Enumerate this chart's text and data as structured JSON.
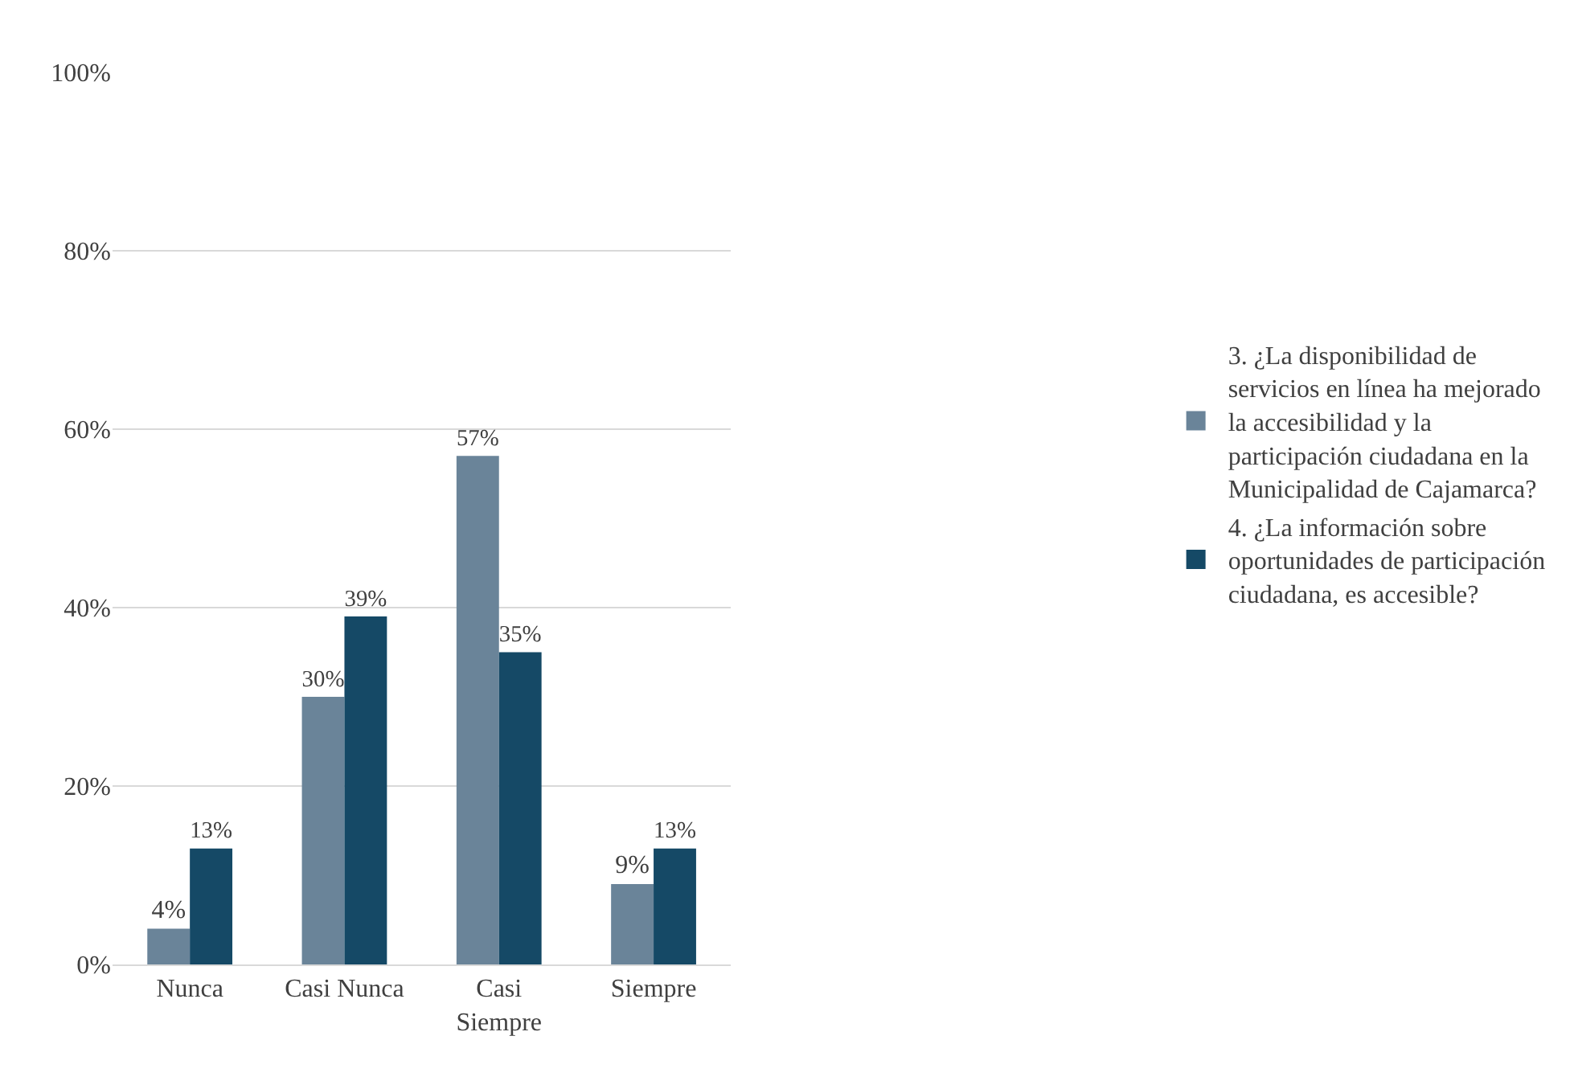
{
  "chart_data": {
    "type": "bar",
    "categories": [
      "Nunca",
      "Casi Nunca",
      "Casi Siempre",
      "Siempre"
    ],
    "series": [
      {
        "name": "3. ¿La disponibilidad de servicios en línea ha mejorado la accesibilidad y la participación ciudadana en la Municipalidad de Cajamarca?",
        "color": "#6a8499",
        "values": [
          4,
          30,
          57,
          9
        ],
        "value_labels": [
          "4%",
          "30%",
          "57%",
          "9%"
        ]
      },
      {
        "name": "4. ¿La información sobre oportunidades de participación ciudadana, es accesible?",
        "color": "#154966",
        "values": [
          13,
          39,
          35,
          13
        ],
        "value_labels": [
          "13%",
          "39%",
          "35%",
          "13%"
        ]
      }
    ],
    "ylim": [
      0,
      100
    ],
    "yticks": [
      {
        "value": 0,
        "label": "0%"
      },
      {
        "value": 20,
        "label": "20%"
      },
      {
        "value": 40,
        "label": "40%"
      },
      {
        "value": 60,
        "label": "60%"
      },
      {
        "value": 80,
        "label": "80%"
      },
      {
        "value": 100,
        "label": "100%"
      }
    ],
    "grid": "y",
    "legend": "right"
  }
}
